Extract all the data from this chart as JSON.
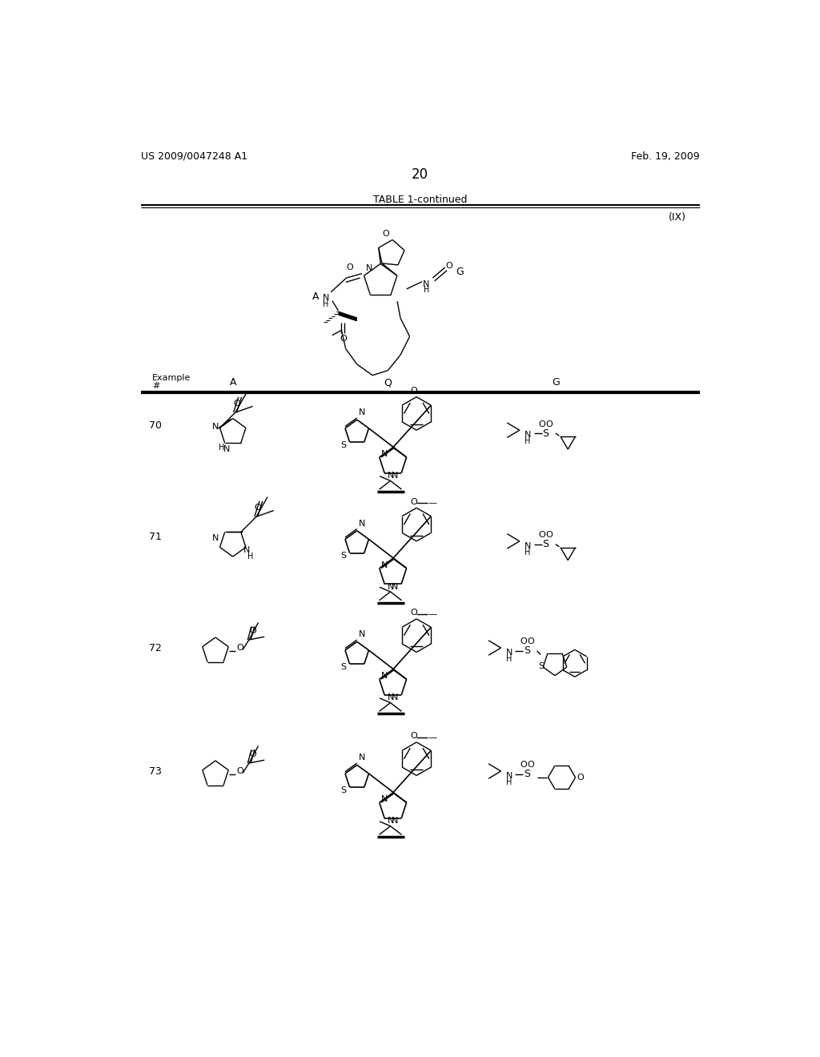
{
  "title_left": "US 2009/0047248 A1",
  "title_right": "Feb. 19, 2009",
  "page_number": "20",
  "table_title": "TABLE 1-continued",
  "structure_label": "(IX)",
  "background": "#ffffff",
  "text_color": "#000000"
}
